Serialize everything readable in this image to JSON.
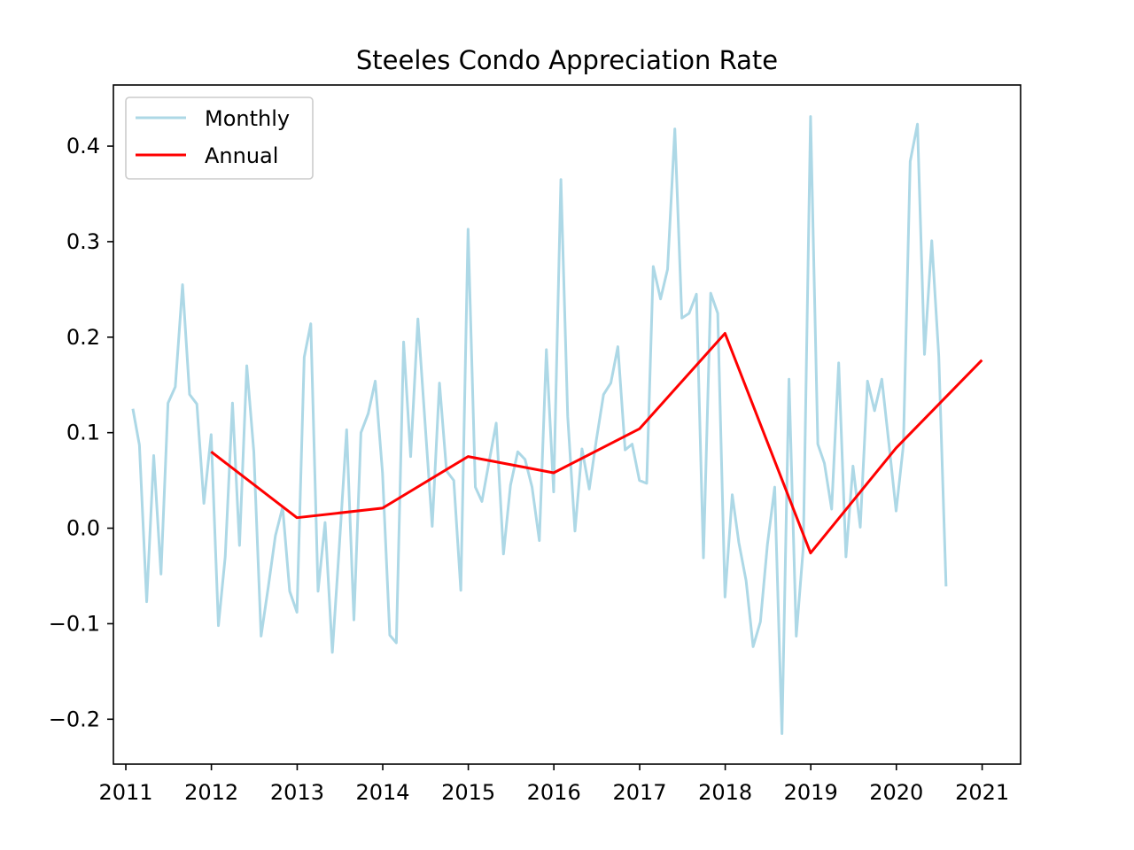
{
  "chart_data": {
    "type": "line",
    "title": "Steeles Condo Appreciation Rate",
    "xlabel": "",
    "ylabel": "",
    "xlim": [
      "2010-11-09",
      "2021-06-14"
    ],
    "ylim": [
      -0.247,
      0.464
    ],
    "x_ticks": [
      "2011",
      "2012",
      "2013",
      "2014",
      "2015",
      "2016",
      "2017",
      "2018",
      "2019",
      "2020",
      "2021"
    ],
    "y_ticks": [
      {
        "value": -0.2,
        "label": "−0.2"
      },
      {
        "value": -0.1,
        "label": "−0.1"
      },
      {
        "value": 0.0,
        "label": "0.0"
      },
      {
        "value": 0.1,
        "label": "0.1"
      },
      {
        "value": 0.2,
        "label": "0.2"
      },
      {
        "value": 0.3,
        "label": "0.3"
      },
      {
        "value": 0.4,
        "label": "0.4"
      }
    ],
    "grid": false,
    "legend_position": "top-left",
    "series": [
      {
        "name": "Monthly",
        "color": "#add8e6",
        "x": [
          "2011-01-31",
          "2011-02-28",
          "2011-03-31",
          "2011-04-30",
          "2011-05-31",
          "2011-06-30",
          "2011-07-31",
          "2011-08-31",
          "2011-09-30",
          "2011-10-31",
          "2011-11-30",
          "2011-12-31",
          "2012-01-31",
          "2012-02-29",
          "2012-03-31",
          "2012-04-30",
          "2012-05-31",
          "2012-06-30",
          "2012-07-31",
          "2012-08-31",
          "2012-09-30",
          "2012-10-31",
          "2012-11-30",
          "2012-12-31",
          "2013-01-31",
          "2013-02-28",
          "2013-03-31",
          "2013-04-30",
          "2013-05-31",
          "2013-06-30",
          "2013-07-31",
          "2013-08-31",
          "2013-09-30",
          "2013-10-31",
          "2013-11-30",
          "2013-12-31",
          "2014-01-31",
          "2014-02-28",
          "2014-03-31",
          "2014-04-30",
          "2014-05-31",
          "2014-06-30",
          "2014-07-31",
          "2014-08-31",
          "2014-09-30",
          "2014-10-31",
          "2014-11-30",
          "2014-12-31",
          "2015-01-31",
          "2015-02-28",
          "2015-03-31",
          "2015-04-30",
          "2015-05-31",
          "2015-06-30",
          "2015-07-31",
          "2015-08-31",
          "2015-09-30",
          "2015-10-31",
          "2015-11-30",
          "2015-12-31",
          "2016-01-31",
          "2016-02-29",
          "2016-03-31",
          "2016-04-30",
          "2016-05-31",
          "2016-06-30",
          "2016-07-31",
          "2016-08-31",
          "2016-09-30",
          "2016-10-31",
          "2016-11-30",
          "2016-12-31",
          "2017-01-31",
          "2017-02-28",
          "2017-03-31",
          "2017-04-30",
          "2017-05-31",
          "2017-06-30",
          "2017-07-31",
          "2017-08-31",
          "2017-09-30",
          "2017-10-31",
          "2017-11-30",
          "2017-12-31",
          "2018-01-31",
          "2018-02-28",
          "2018-03-31",
          "2018-04-30",
          "2018-05-31",
          "2018-06-30",
          "2018-07-31",
          "2018-08-31",
          "2018-09-30",
          "2018-10-31",
          "2018-11-30",
          "2018-12-31",
          "2019-01-31",
          "2019-02-28",
          "2019-03-31",
          "2019-04-30",
          "2019-05-31",
          "2019-06-30",
          "2019-07-31",
          "2019-08-31",
          "2019-09-30",
          "2019-10-31",
          "2019-11-30",
          "2019-12-31",
          "2020-01-31",
          "2020-02-29",
          "2020-03-31",
          "2020-04-30",
          "2020-05-31",
          "2020-06-30",
          "2020-07-31"
        ],
        "y": [
          0.125,
          0.087,
          -0.077,
          0.076,
          -0.048,
          0.131,
          0.148,
          0.255,
          0.14,
          0.13,
          0.026,
          0.098,
          -0.102,
          -0.03,
          0.131,
          -0.018,
          0.17,
          0.08,
          -0.113,
          -0.061,
          -0.008,
          0.022,
          -0.066,
          -0.088,
          0.179,
          0.214,
          -0.066,
          0.006,
          -0.13,
          -0.018,
          0.103,
          -0.096,
          0.1,
          0.12,
          0.154,
          0.058,
          -0.112,
          -0.12,
          0.195,
          0.075,
          0.219,
          0.112,
          0.002,
          0.152,
          0.06,
          0.05,
          -0.065,
          0.313,
          0.043,
          0.028,
          0.07,
          0.11,
          -0.027,
          0.045,
          0.08,
          0.072,
          0.043,
          -0.013,
          0.187,
          0.038,
          0.365,
          0.117,
          -0.003,
          0.083,
          0.041,
          0.092,
          0.14,
          0.152,
          0.19,
          0.082,
          0.088,
          0.05,
          0.047,
          0.274,
          0.24,
          0.271,
          0.418,
          0.22,
          0.225,
          0.245,
          -0.031,
          0.246,
          0.225,
          -0.072,
          0.035,
          -0.015,
          -0.055,
          -0.124,
          -0.098,
          -0.017,
          0.043,
          -0.215,
          0.156,
          -0.113,
          -0.02,
          0.431,
          0.088,
          0.068,
          0.02,
          0.173,
          -0.03,
          0.065,
          0.001,
          0.154,
          0.123,
          0.156,
          0.089,
          0.018,
          0.087,
          0.384,
          0.423,
          0.182,
          0.301,
          0.18,
          -0.061
        ]
      },
      {
        "name": "Annual",
        "color": "#ff0000",
        "x": [
          "2011-12-31",
          "2012-12-31",
          "2013-12-31",
          "2014-12-31",
          "2015-12-31",
          "2016-12-31",
          "2017-12-31",
          "2018-12-31",
          "2019-12-31",
          "2020-12-31"
        ],
        "y": [
          0.08,
          0.011,
          0.021,
          0.075,
          0.058,
          0.104,
          0.204,
          -0.026,
          0.084,
          0.176
        ]
      }
    ]
  }
}
